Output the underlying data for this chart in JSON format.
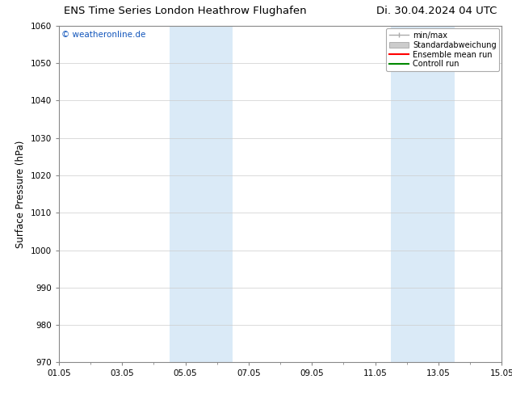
{
  "title_left": "ENS Time Series London Heathrow Flughafen",
  "title_right": "Di. 30.04.2024 04 UTC",
  "ylabel": "Surface Pressure (hPa)",
  "ylim": [
    970,
    1060
  ],
  "yticks": [
    970,
    980,
    990,
    1000,
    1010,
    1020,
    1030,
    1040,
    1050,
    1060
  ],
  "xlim": [
    0,
    14
  ],
  "xtick_labels": [
    "01.05",
    "03.05",
    "05.05",
    "07.05",
    "09.05",
    "11.05",
    "13.05",
    "15.05"
  ],
  "xtick_positions": [
    0,
    2,
    4,
    6,
    8,
    10,
    12,
    14
  ],
  "shaded_regions": [
    {
      "x_start": 3.5,
      "x_end": 5.5,
      "color": "#daeaf7",
      "alpha": 1.0
    },
    {
      "x_start": 10.5,
      "x_end": 12.5,
      "color": "#daeaf7",
      "alpha": 1.0
    }
  ],
  "watermark": "© weatheronline.de",
  "watermark_color": "#1155bb",
  "background_color": "#ffffff",
  "legend_items": [
    {
      "label": "min/max",
      "color": "#aaaaaa",
      "lw": 1.0
    },
    {
      "label": "Standardabweichung",
      "color": "#cccccc",
      "lw": 5
    },
    {
      "label": "Ensemble mean run",
      "color": "#ff0000",
      "lw": 1.5
    },
    {
      "label": "Controll run",
      "color": "#008800",
      "lw": 1.5
    }
  ],
  "title_fontsize": 9.5,
  "ylabel_fontsize": 8.5,
  "tick_fontsize": 7.5,
  "watermark_fontsize": 7.5,
  "legend_fontsize": 7.0,
  "grid_color": "#cccccc",
  "grid_lw": 0.5
}
